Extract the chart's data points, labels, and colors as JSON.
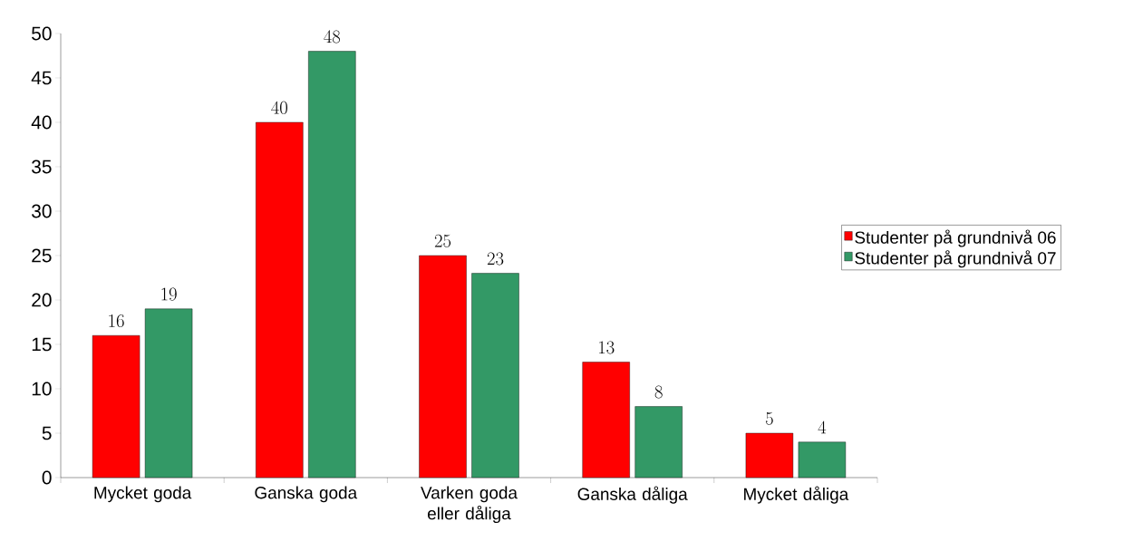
{
  "chart_data": {
    "type": "bar",
    "categories": [
      "Mycket goda",
      "Ganska goda",
      "Varken goda eller dåliga",
      "Ganska dåliga",
      "Mycket dåliga"
    ],
    "series": [
      {
        "name": "Studenter på grundnivå 06",
        "color": "#ff0000",
        "values": [
          16,
          40,
          25,
          13,
          5
        ]
      },
      {
        "name": "Studenter på grundnivå 07",
        "color": "#339966",
        "values": [
          19,
          48,
          23,
          8,
          4
        ]
      }
    ],
    "ylim": [
      0,
      50
    ],
    "yticks": [
      0,
      5,
      10,
      15,
      20,
      25,
      30,
      35,
      40,
      45,
      50
    ],
    "data_labels": true,
    "legend": "right",
    "grid": false
  }
}
